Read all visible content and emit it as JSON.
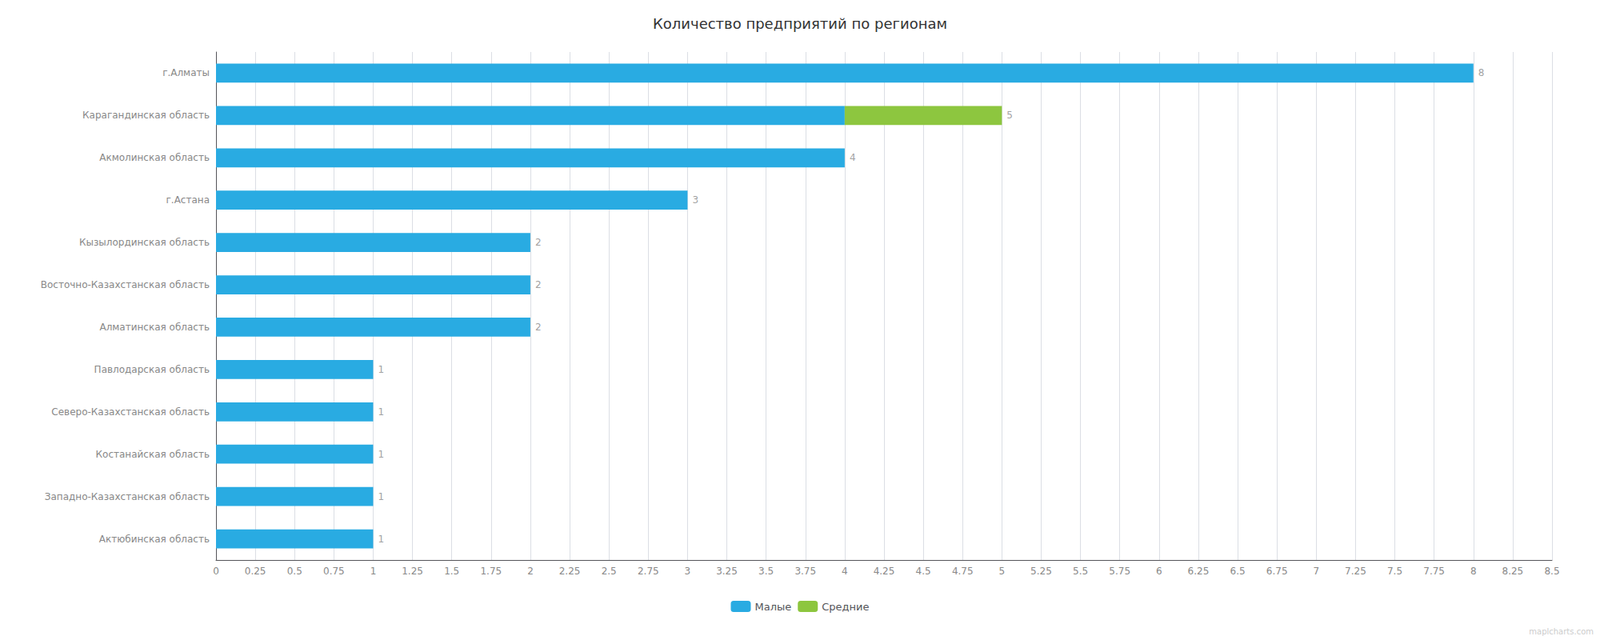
{
  "chart_data": {
    "type": "bar",
    "orientation": "horizontal",
    "stacked": true,
    "title": "Количество предприятий по регионам",
    "categories": [
      "г.Алматы",
      "Карагандинская область",
      "Акмолинская область",
      "г.Астана",
      "Кызылординская область",
      "Восточно-Казахстанская область",
      "Алматинская область",
      "Павлодарская область",
      "Северо-Казахстанская область",
      "Костанайская область",
      "Западно-Казахстанская область",
      "Актюбинская область"
    ],
    "series": [
      {
        "name": "Малые",
        "color": "#29ABE2",
        "values": [
          8,
          4,
          4,
          3,
          2,
          2,
          2,
          1,
          1,
          1,
          1,
          1
        ]
      },
      {
        "name": "Средние",
        "color": "#8DC63F",
        "values": [
          0,
          1,
          0,
          0,
          0,
          0,
          0,
          0,
          0,
          0,
          0,
          0
        ]
      }
    ],
    "totals": [
      8,
      5,
      4,
      3,
      2,
      2,
      2,
      1,
      1,
      1,
      1,
      1
    ],
    "xlim": [
      0,
      8.5
    ],
    "xticks": [
      0,
      0.25,
      0.5,
      0.75,
      1,
      1.25,
      1.5,
      1.75,
      2,
      2.25,
      2.5,
      2.75,
      3,
      3.25,
      3.5,
      3.75,
      4,
      4.25,
      4.5,
      4.75,
      5,
      5.25,
      5.5,
      5.75,
      6,
      6.25,
      6.5,
      6.75,
      7,
      7.25,
      7.5,
      7.75,
      8,
      8.25,
      8.5
    ],
    "grid": true,
    "legend": "bottom",
    "watermark": "maplcharts.com"
  }
}
